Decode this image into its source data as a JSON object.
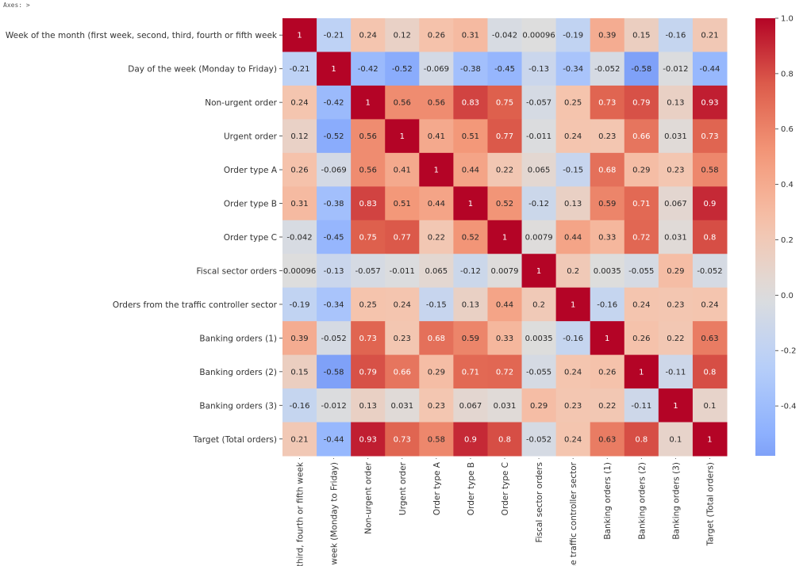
{
  "header": {
    "axes_repr": "Axes: >"
  },
  "chart_data": {
    "type": "heatmap",
    "title": "",
    "xlabel": "",
    "ylabel": "",
    "colormap": "coolwarm",
    "colorbar": {
      "range": [
        -0.58,
        1.0
      ],
      "ticks": [
        1.0,
        0.8,
        0.6,
        0.4,
        0.2,
        0.0,
        -0.2,
        -0.4
      ],
      "tick_labels": [
        "1.0",
        "0.8",
        "0.6",
        "0.4",
        "0.2",
        "0.0",
        "-0.2",
        "-0.4"
      ],
      "placement": "right"
    },
    "row_labels": [
      "Week of the month (first week, second, third, fourth or fifth week",
      "Day of the week (Monday to Friday)",
      "Non-urgent order",
      "Urgent order",
      "Order type A",
      "Order type B",
      "Order type C",
      "Fiscal sector orders",
      "Orders from the traffic controller sector",
      "Banking orders (1)",
      "Banking orders (2)",
      "Banking orders (3)",
      "Target (Total orders)"
    ],
    "col_labels": [
      "third, fourth or fifth week",
      "week (Monday to Friday)",
      "Non-urgent order",
      "Urgent order",
      "Order type A",
      "Order type B",
      "Order type C",
      "Fiscal sector orders",
      "he traffic controller sector",
      "Banking orders (1)",
      "Banking orders (2)",
      "Banking orders (3)",
      "Target (Total orders)"
    ],
    "values": [
      [
        1,
        -0.21,
        0.24,
        0.12,
        0.26,
        0.31,
        -0.042,
        0.00096,
        -0.19,
        0.39,
        0.15,
        -0.16,
        0.21
      ],
      [
        -0.21,
        1,
        -0.42,
        -0.52,
        -0.069,
        -0.38,
        -0.45,
        -0.13,
        -0.34,
        -0.052,
        -0.58,
        -0.012,
        -0.44
      ],
      [
        0.24,
        -0.42,
        1,
        0.56,
        0.56,
        0.83,
        0.75,
        -0.057,
        0.25,
        0.73,
        0.79,
        0.13,
        0.93
      ],
      [
        0.12,
        -0.52,
        0.56,
        1,
        0.41,
        0.51,
        0.77,
        -0.011,
        0.24,
        0.23,
        0.66,
        0.031,
        0.73
      ],
      [
        0.26,
        -0.069,
        0.56,
        0.41,
        1,
        0.44,
        0.22,
        0.065,
        -0.15,
        0.68,
        0.29,
        0.23,
        0.58
      ],
      [
        0.31,
        -0.38,
        0.83,
        0.51,
        0.44,
        1,
        0.52,
        -0.12,
        0.13,
        0.59,
        0.71,
        0.067,
        0.9
      ],
      [
        -0.042,
        -0.45,
        0.75,
        0.77,
        0.22,
        0.52,
        1,
        0.0079,
        0.44,
        0.33,
        0.72,
        0.031,
        0.8
      ],
      [
        0.00096,
        -0.13,
        -0.057,
        -0.011,
        0.065,
        -0.12,
        0.0079,
        1,
        0.2,
        0.0035,
        -0.055,
        0.29,
        -0.052
      ],
      [
        -0.19,
        -0.34,
        0.25,
        0.24,
        -0.15,
        0.13,
        0.44,
        0.2,
        1,
        -0.16,
        0.24,
        0.23,
        0.24
      ],
      [
        0.39,
        -0.052,
        0.73,
        0.23,
        0.68,
        0.59,
        0.33,
        0.0035,
        -0.16,
        1,
        0.26,
        0.22,
        0.63
      ],
      [
        0.15,
        -0.58,
        0.79,
        0.66,
        0.29,
        0.71,
        0.72,
        -0.055,
        0.24,
        0.26,
        1,
        -0.11,
        0.8
      ],
      [
        -0.16,
        -0.012,
        0.13,
        0.031,
        0.23,
        0.067,
        0.031,
        0.29,
        0.23,
        0.22,
        -0.11,
        1,
        0.1
      ],
      [
        0.21,
        -0.44,
        0.93,
        0.73,
        0.58,
        0.9,
        0.8,
        -0.052,
        0.24,
        0.63,
        0.8,
        0.1,
        1
      ]
    ],
    "value_labels": [
      [
        "1",
        "-0.21",
        "0.24",
        "0.12",
        "0.26",
        "0.31",
        "-0.042",
        "0.00096",
        "-0.19",
        "0.39",
        "0.15",
        "-0.16",
        "0.21"
      ],
      [
        "-0.21",
        "1",
        "-0.42",
        "-0.52",
        "-0.069",
        "-0.38",
        "-0.45",
        "-0.13",
        "-0.34",
        "-0.052",
        "-0.58",
        "-0.012",
        "-0.44"
      ],
      [
        "0.24",
        "-0.42",
        "1",
        "0.56",
        "0.56",
        "0.83",
        "0.75",
        "-0.057",
        "0.25",
        "0.73",
        "0.79",
        "0.13",
        "0.93"
      ],
      [
        "0.12",
        "-0.52",
        "0.56",
        "1",
        "0.41",
        "0.51",
        "0.77",
        "-0.011",
        "0.24",
        "0.23",
        "0.66",
        "0.031",
        "0.73"
      ],
      [
        "0.26",
        "-0.069",
        "0.56",
        "0.41",
        "1",
        "0.44",
        "0.22",
        "0.065",
        "-0.15",
        "0.68",
        "0.29",
        "0.23",
        "0.58"
      ],
      [
        "0.31",
        "-0.38",
        "0.83",
        "0.51",
        "0.44",
        "1",
        "0.52",
        "-0.12",
        "0.13",
        "0.59",
        "0.71",
        "0.067",
        "0.9"
      ],
      [
        "-0.042",
        "-0.45",
        "0.75",
        "0.77",
        "0.22",
        "0.52",
        "1",
        "0.0079",
        "0.44",
        "0.33",
        "0.72",
        "0.031",
        "0.8"
      ],
      [
        "0.00096",
        "-0.13",
        "-0.057",
        "-0.011",
        "0.065",
        "-0.12",
        "0.0079",
        "1",
        "0.2",
        "0.0035",
        "-0.055",
        "0.29",
        "-0.052"
      ],
      [
        "-0.19",
        "-0.34",
        "0.25",
        "0.24",
        "-0.15",
        "0.13",
        "0.44",
        "0.2",
        "1",
        "-0.16",
        "0.24",
        "0.23",
        "0.24"
      ],
      [
        "0.39",
        "-0.052",
        "0.73",
        "0.23",
        "0.68",
        "0.59",
        "0.33",
        "0.0035",
        "-0.16",
        "1",
        "0.26",
        "0.22",
        "0.63"
      ],
      [
        "0.15",
        "-0.58",
        "0.79",
        "0.66",
        "0.29",
        "0.71",
        "0.72",
        "-0.055",
        "0.24",
        "0.26",
        "1",
        "-0.11",
        "0.8"
      ],
      [
        "-0.16",
        "-0.012",
        "0.13",
        "0.031",
        "0.23",
        "0.067",
        "0.031",
        "0.29",
        "0.23",
        "0.22",
        "-0.11",
        "1",
        "0.1"
      ],
      [
        "0.21",
        "-0.44",
        "0.93",
        "0.73",
        "0.58",
        "0.9",
        "0.8",
        "-0.052",
        "0.24",
        "0.63",
        "0.8",
        "0.1",
        "1"
      ]
    ],
    "annot": true,
    "grid": false
  }
}
